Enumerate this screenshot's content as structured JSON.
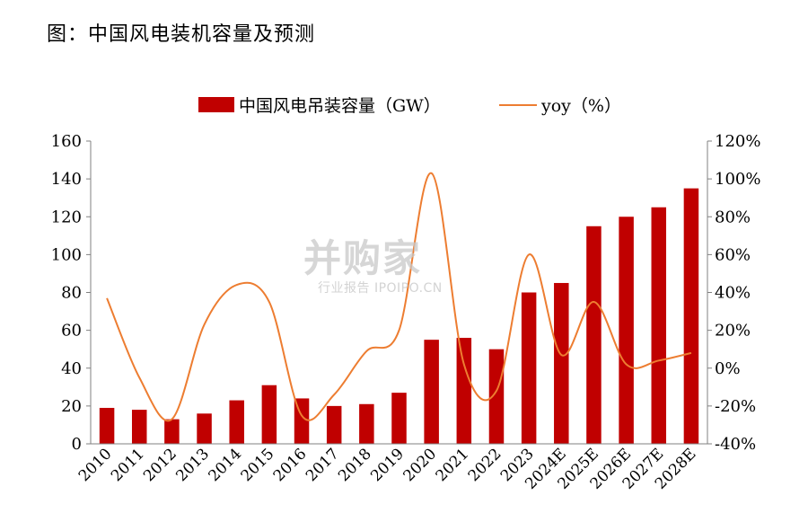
{
  "figure": {
    "title": "图：中国风电装机容量及预测",
    "watermark_logo": "并购家",
    "watermark_sub": "行业报告 IPOIPO.CN"
  },
  "chart_data": {
    "type": "bar",
    "categories": [
      "2010",
      "2011",
      "2012",
      "2013",
      "2014",
      "2015",
      "2016",
      "2017",
      "2018",
      "2019",
      "2020",
      "2021",
      "2022",
      "2023",
      "2024E",
      "2025E",
      "2026E",
      "2027E",
      "2028E"
    ],
    "series": [
      {
        "name": "中国风电吊装容量（GW）",
        "type": "bar",
        "axis": "left",
        "color": "#C00000",
        "values": [
          19,
          18,
          13,
          16,
          23,
          31,
          24,
          20,
          21,
          27,
          55,
          56,
          50,
          80,
          85,
          115,
          120,
          125,
          135
        ]
      },
      {
        "name": "yoy（%）",
        "type": "line",
        "axis": "right",
        "color": "#ED7D31",
        "values": [
          37,
          -5,
          -27,
          23,
          44,
          35,
          -25,
          -14,
          9,
          20,
          103,
          2,
          -12,
          60,
          7,
          35,
          2,
          4,
          8
        ]
      }
    ],
    "left_axis": {
      "min": 0,
      "max": 160,
      "ticks": [
        "0",
        "20",
        "40",
        "60",
        "80",
        "100",
        "120",
        "140",
        "160"
      ]
    },
    "right_axis": {
      "min": -40,
      "max": 120,
      "ticks": [
        "-40%",
        "-20%",
        "0%",
        "20%",
        "40%",
        "60%",
        "80%",
        "100%",
        "120%"
      ]
    },
    "legend_position": "top",
    "grid": false
  }
}
